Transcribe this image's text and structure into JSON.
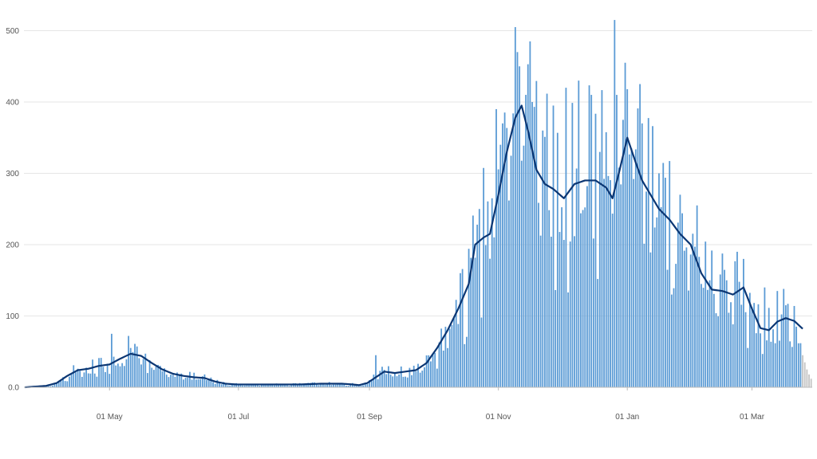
{
  "chart_data": {
    "type": "bar",
    "title": "",
    "xlabel": "",
    "ylabel": "",
    "ylim": [
      0,
      500
    ],
    "y_ticks": [
      {
        "value": 0,
        "label": "0.0"
      },
      {
        "value": 100,
        "label": "100"
      },
      {
        "value": 200,
        "label": "200"
      },
      {
        "value": 300,
        "label": "300"
      },
      {
        "value": 400,
        "label": "400"
      },
      {
        "value": 500,
        "label": "500"
      }
    ],
    "x_ticks": [
      {
        "day": 40,
        "label": "01 May"
      },
      {
        "day": 101,
        "label": "01 Jul"
      },
      {
        "day": 163,
        "label": "01 Sep"
      },
      {
        "day": 224,
        "label": "01 Nov"
      },
      {
        "day": 285,
        "label": "01 Jan"
      },
      {
        "day": 344,
        "label": "01 Mar"
      }
    ],
    "grid": true,
    "legend": "none",
    "colors": {
      "bars": "#5b9bd5",
      "incomplete_bars": "#c4c4c4",
      "average_line": "#0b3673"
    },
    "days": 373,
    "incomplete_from_day": 368,
    "average_anchors": [
      [
        0,
        0
      ],
      [
        5,
        1
      ],
      [
        10,
        2
      ],
      [
        15,
        6
      ],
      [
        20,
        16
      ],
      [
        25,
        24
      ],
      [
        30,
        26
      ],
      [
        35,
        30
      ],
      [
        40,
        32
      ],
      [
        45,
        40
      ],
      [
        50,
        47
      ],
      [
        55,
        44
      ],
      [
        60,
        34
      ],
      [
        65,
        25
      ],
      [
        70,
        19
      ],
      [
        75,
        16
      ],
      [
        80,
        14
      ],
      [
        85,
        13
      ],
      [
        90,
        8
      ],
      [
        95,
        5
      ],
      [
        100,
        4
      ],
      [
        110,
        4
      ],
      [
        120,
        4
      ],
      [
        130,
        4
      ],
      [
        140,
        5
      ],
      [
        150,
        5
      ],
      [
        155,
        4
      ],
      [
        158,
        3
      ],
      [
        162,
        6
      ],
      [
        166,
        14
      ],
      [
        170,
        22
      ],
      [
        175,
        20
      ],
      [
        180,
        22
      ],
      [
        185,
        24
      ],
      [
        190,
        34
      ],
      [
        195,
        55
      ],
      [
        200,
        80
      ],
      [
        205,
        110
      ],
      [
        210,
        145
      ],
      [
        213,
        200
      ],
      [
        217,
        210
      ],
      [
        220,
        215
      ],
      [
        224,
        270
      ],
      [
        228,
        330
      ],
      [
        232,
        378
      ],
      [
        235,
        395
      ],
      [
        238,
        360
      ],
      [
        242,
        305
      ],
      [
        246,
        285
      ],
      [
        250,
        278
      ],
      [
        255,
        265
      ],
      [
        260,
        285
      ],
      [
        265,
        290
      ],
      [
        270,
        290
      ],
      [
        275,
        280
      ],
      [
        278,
        265
      ],
      [
        281,
        300
      ],
      [
        285,
        350
      ],
      [
        289,
        315
      ],
      [
        292,
        290
      ],
      [
        296,
        270
      ],
      [
        300,
        250
      ],
      [
        305,
        235
      ],
      [
        310,
        215
      ],
      [
        315,
        200
      ],
      [
        320,
        160
      ],
      [
        325,
        137
      ],
      [
        330,
        135
      ],
      [
        335,
        130
      ],
      [
        340,
        140
      ],
      [
        344,
        110
      ],
      [
        348,
        83
      ],
      [
        352,
        80
      ],
      [
        356,
        92
      ],
      [
        360,
        97
      ],
      [
        364,
        93
      ],
      [
        368,
        82
      ]
    ],
    "spikes": [
      [
        41,
        75
      ],
      [
        49,
        72
      ],
      [
        58,
        20
      ],
      [
        85,
        18
      ],
      [
        166,
        45
      ],
      [
        215,
        250
      ],
      [
        221,
        265
      ],
      [
        223,
        390
      ],
      [
        226,
        370
      ],
      [
        232,
        505
      ],
      [
        233,
        470
      ],
      [
        234,
        450
      ],
      [
        237,
        410
      ],
      [
        239,
        485
      ],
      [
        240,
        400
      ],
      [
        245,
        360
      ],
      [
        250,
        395
      ],
      [
        256,
        420
      ],
      [
        262,
        430
      ],
      [
        268,
        410
      ],
      [
        272,
        330
      ],
      [
        279,
        515
      ],
      [
        280,
        410
      ],
      [
        283,
        375
      ],
      [
        285,
        418
      ],
      [
        292,
        370
      ],
      [
        300,
        300
      ],
      [
        310,
        270
      ],
      [
        318,
        255
      ],
      [
        324,
        150
      ],
      [
        332,
        150
      ],
      [
        337,
        190
      ],
      [
        340,
        180
      ],
      [
        350,
        140
      ],
      [
        356,
        135
      ],
      [
        360,
        115
      ],
      [
        365,
        85
      ]
    ],
    "noise_amplitude": 0.38
  }
}
